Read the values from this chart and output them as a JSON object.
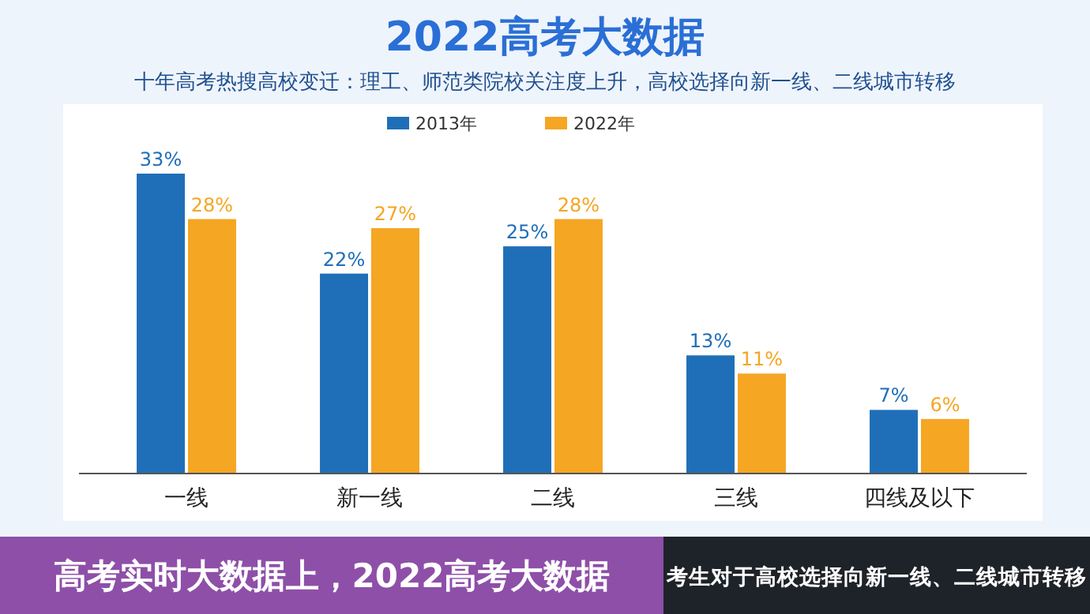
{
  "chart_data": {
    "type": "bar",
    "title": "2022高考大数据",
    "subtitle": "十年高考热搜高校变迁：理工、师范类院校关注度上升，高校选择向新一线、二线城市转移",
    "categories": [
      "一线",
      "新一线",
      "二线",
      "三线",
      "四线及以下"
    ],
    "series": [
      {
        "name": "2013年",
        "color": "#1f6fb8",
        "values": [
          33,
          22,
          25,
          13,
          7
        ],
        "value_labels": [
          "33%",
          "22%",
          "25%",
          "13%",
          "7%"
        ]
      },
      {
        "name": "2022年",
        "color": "#f5a623",
        "values": [
          28,
          27,
          28,
          11,
          6
        ],
        "value_labels": [
          "28%",
          "27%",
          "28%",
          "11%",
          "6%"
        ]
      }
    ],
    "legend": "top",
    "annotations": [
      "高考实时大数据上，2022高考大数据",
      "考生对于高校选择向新一线、二线城市转移"
    ]
  }
}
